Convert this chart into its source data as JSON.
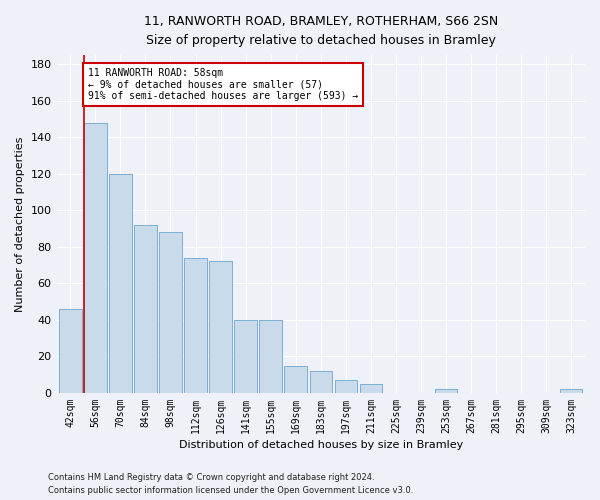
{
  "title_line1": "11, RANWORTH ROAD, BRAMLEY, ROTHERHAM, S66 2SN",
  "title_line2": "Size of property relative to detached houses in Bramley",
  "xlabel": "Distribution of detached houses by size in Bramley",
  "ylabel": "Number of detached properties",
  "footer_line1": "Contains HM Land Registry data © Crown copyright and database right 2024.",
  "footer_line2": "Contains public sector information licensed under the Open Government Licence v3.0.",
  "annotation_title": "11 RANWORTH ROAD: 58sqm",
  "annotation_line2": "← 9% of detached houses are smaller (57)",
  "annotation_line3": "91% of semi-detached houses are larger (593) →",
  "bar_categories": [
    "42sqm",
    "56sqm",
    "70sqm",
    "84sqm",
    "98sqm",
    "112sqm",
    "126sqm",
    "141sqm",
    "155sqm",
    "169sqm",
    "183sqm",
    "197sqm",
    "211sqm",
    "225sqm",
    "239sqm",
    "253sqm",
    "267sqm",
    "281sqm",
    "295sqm",
    "309sqm",
    "323sqm"
  ],
  "bar_values": [
    46,
    148,
    120,
    92,
    88,
    74,
    72,
    40,
    40,
    15,
    12,
    7,
    5,
    0,
    0,
    2,
    0,
    0,
    0,
    0,
    2
  ],
  "bar_color": "#c9daea",
  "bar_edge_color": "#7aadd4",
  "marker_color": "#cc0000",
  "ylim": [
    0,
    185
  ],
  "yticks": [
    0,
    20,
    40,
    60,
    80,
    100,
    120,
    140,
    160,
    180
  ],
  "bg_color": "#eef2f8",
  "grid_color": "#ffffff",
  "annotation_box_color": "#cc0000",
  "annotation_fill": "#ffffff",
  "title_fontsize": 9,
  "subtitle_fontsize": 8,
  "ylabel_fontsize": 8,
  "xlabel_fontsize": 8,
  "tick_fontsize": 7,
  "footer_fontsize": 6
}
